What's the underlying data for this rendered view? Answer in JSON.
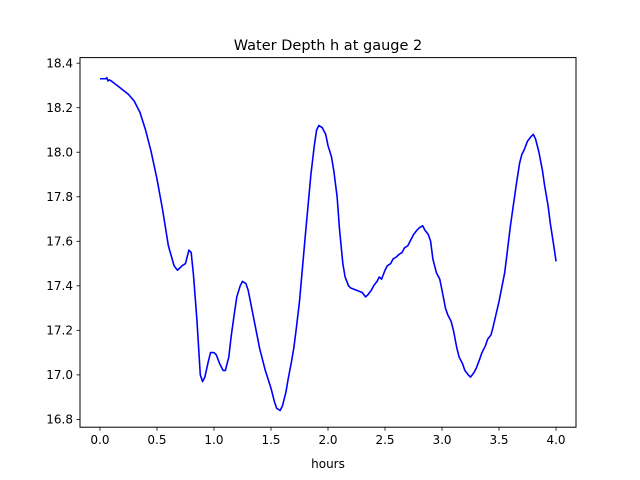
{
  "chart_data": {
    "type": "line",
    "title": "Water Depth h at gauge 2",
    "xlabel": "hours",
    "ylabel": "",
    "xlim": [
      -0.175,
      4.175
    ],
    "ylim": [
      16.765,
      18.425
    ],
    "x_ticks": [
      0.0,
      0.5,
      1.0,
      1.5,
      2.0,
      2.5,
      3.0,
      3.5,
      4.0
    ],
    "x_tick_labels": [
      "0.0",
      "0.5",
      "1.0",
      "1.5",
      "2.0",
      "2.5",
      "3.0",
      "3.5",
      "4.0"
    ],
    "y_ticks": [
      16.8,
      17.0,
      17.2,
      17.4,
      17.6,
      17.8,
      18.0,
      18.2,
      18.4
    ],
    "y_tick_labels": [
      "16.8",
      "17.0",
      "17.2",
      "17.4",
      "17.6",
      "17.8",
      "18.0",
      "18.2",
      "18.4"
    ],
    "grid": false,
    "legend": "none",
    "series": [
      {
        "color": "#0000ff",
        "x": [
          0.0,
          0.05,
          0.06,
          0.07,
          0.08,
          0.1,
          0.15,
          0.2,
          0.25,
          0.3,
          0.35,
          0.4,
          0.45,
          0.5,
          0.55,
          0.6,
          0.65,
          0.68,
          0.7,
          0.72,
          0.75,
          0.78,
          0.8,
          0.82,
          0.85,
          0.88,
          0.9,
          0.92,
          0.95,
          0.97,
          1.0,
          1.02,
          1.05,
          1.08,
          1.1,
          1.13,
          1.15,
          1.18,
          1.2,
          1.23,
          1.25,
          1.28,
          1.3,
          1.35,
          1.4,
          1.45,
          1.5,
          1.53,
          1.55,
          1.58,
          1.6,
          1.63,
          1.65,
          1.68,
          1.7,
          1.72,
          1.75,
          1.8,
          1.85,
          1.88,
          1.9,
          1.92,
          1.95,
          1.98,
          2.0,
          2.03,
          2.05,
          2.08,
          2.1,
          2.13,
          2.15,
          2.18,
          2.2,
          2.25,
          2.3,
          2.33,
          2.35,
          2.38,
          2.4,
          2.43,
          2.45,
          2.47,
          2.5,
          2.52,
          2.55,
          2.57,
          2.6,
          2.62,
          2.65,
          2.67,
          2.7,
          2.72,
          2.75,
          2.78,
          2.8,
          2.83,
          2.85,
          2.88,
          2.9,
          2.92,
          2.95,
          2.98,
          3.0,
          3.03,
          3.05,
          3.08,
          3.1,
          3.13,
          3.15,
          3.18,
          3.2,
          3.23,
          3.25,
          3.28,
          3.3,
          3.33,
          3.35,
          3.38,
          3.4,
          3.43,
          3.45,
          3.5,
          3.55,
          3.6,
          3.65,
          3.68,
          3.7,
          3.72,
          3.75,
          3.78,
          3.8,
          3.82,
          3.85,
          3.88,
          3.9,
          3.93,
          3.95,
          3.98,
          4.0
        ],
        "y": [
          18.33,
          18.33,
          18.335,
          18.32,
          18.325,
          18.32,
          18.3,
          18.28,
          18.26,
          18.23,
          18.18,
          18.1,
          18.0,
          17.88,
          17.74,
          17.58,
          17.49,
          17.47,
          17.48,
          17.49,
          17.5,
          17.56,
          17.55,
          17.45,
          17.25,
          17.0,
          16.97,
          16.99,
          17.06,
          17.1,
          17.1,
          17.09,
          17.05,
          17.02,
          17.02,
          17.08,
          17.17,
          17.28,
          17.35,
          17.4,
          17.42,
          17.41,
          17.38,
          17.25,
          17.12,
          17.02,
          16.94,
          16.88,
          16.85,
          16.84,
          16.86,
          16.92,
          16.98,
          17.06,
          17.12,
          17.2,
          17.33,
          17.62,
          17.9,
          18.03,
          18.1,
          18.12,
          18.11,
          18.08,
          18.03,
          17.98,
          17.92,
          17.8,
          17.66,
          17.5,
          17.44,
          17.4,
          17.39,
          17.38,
          17.37,
          17.35,
          17.36,
          17.38,
          17.4,
          17.42,
          17.44,
          17.43,
          17.47,
          17.49,
          17.5,
          17.52,
          17.53,
          17.54,
          17.55,
          17.57,
          17.58,
          17.6,
          17.63,
          17.65,
          17.66,
          17.67,
          17.65,
          17.63,
          17.6,
          17.52,
          17.46,
          17.43,
          17.38,
          17.3,
          17.27,
          17.24,
          17.2,
          17.12,
          17.08,
          17.05,
          17.02,
          17.0,
          16.99,
          17.01,
          17.03,
          17.07,
          17.1,
          17.13,
          17.16,
          17.18,
          17.22,
          17.33,
          17.46,
          17.67,
          17.85,
          17.95,
          17.99,
          18.01,
          18.05,
          18.07,
          18.08,
          18.06,
          18.0,
          17.92,
          17.85,
          17.76,
          17.68,
          17.58,
          17.51
        ]
      }
    ]
  }
}
